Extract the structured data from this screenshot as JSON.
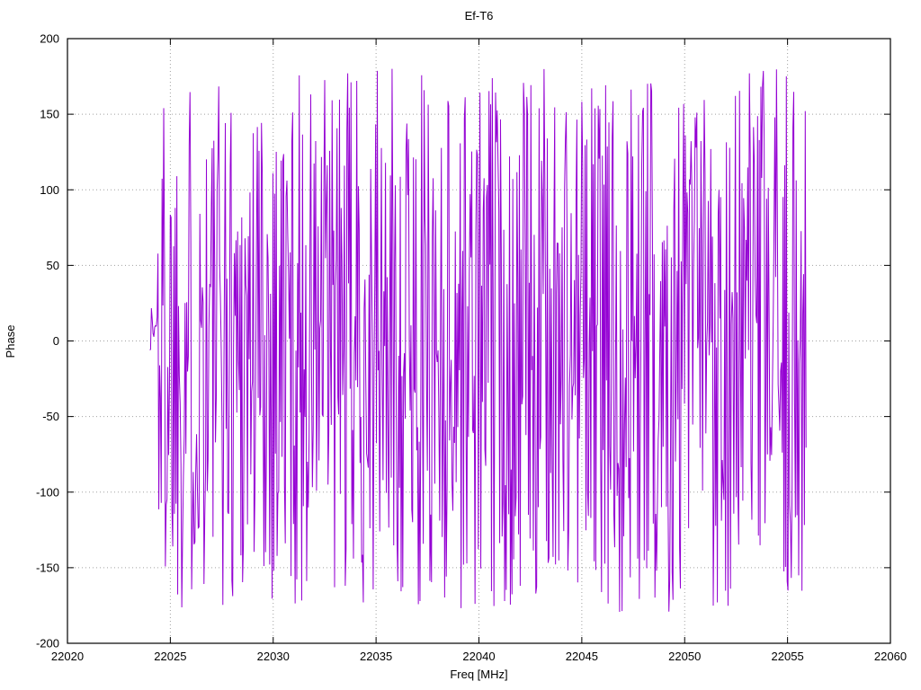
{
  "chart": {
    "title": "Ef-T6",
    "xlabel": "Freq [MHz]",
    "ylabel": "Phase"
  },
  "chart_data": {
    "type": "line",
    "title": "Ef-T6",
    "xlabel": "Freq [MHz]",
    "ylabel": "Phase",
    "xlim": [
      22020,
      22060
    ],
    "ylim": [
      -200,
      200
    ],
    "xticks": [
      22020,
      22025,
      22030,
      22035,
      22040,
      22045,
      22050,
      22055,
      22060
    ],
    "yticks": [
      -200,
      -150,
      -100,
      -50,
      0,
      50,
      100,
      150,
      200
    ],
    "grid": true,
    "grid_style": "dotted",
    "legend": "none",
    "line_color": "#9400d3",
    "background": "#ffffff",
    "series": [
      {
        "name": "Ef-T6 phase",
        "description": "Wrapped interferometric phase noise, uniformly scattered between -180 and +180 degrees across the band; dense vertical excursions; small cluster near 0 deg at band start.",
        "x_start": 22024.0,
        "x_end": 22055.9,
        "n_points": 800,
        "y_min": -180,
        "y_max": 180,
        "distribution": "uniform",
        "seed": 1337,
        "initial_cluster": {
          "x_end": 22024.35,
          "y_low": -14,
          "y_high": 30
        }
      }
    ]
  }
}
